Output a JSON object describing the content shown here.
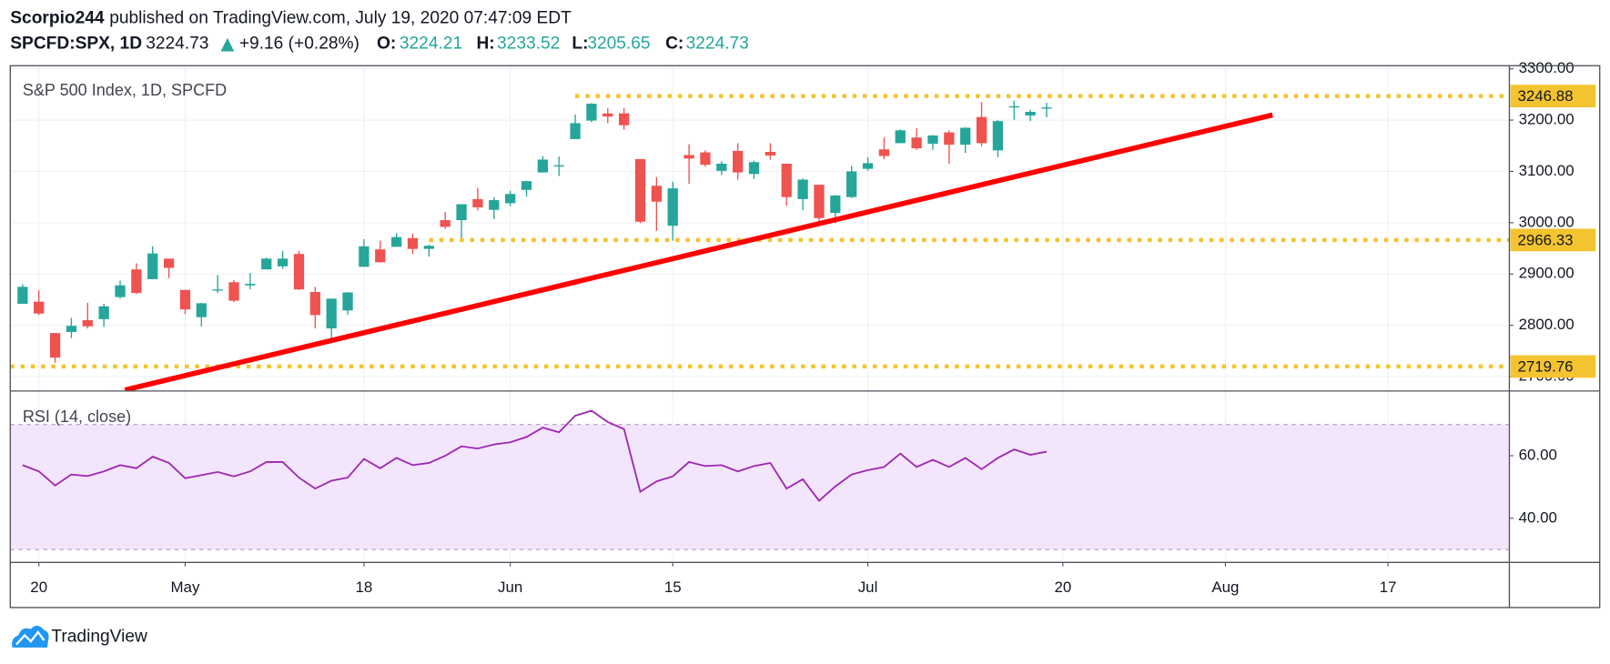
{
  "chart_data": {
    "type": "candlestick",
    "header": {
      "publisher": "Scorpio244",
      "published": "published on TradingView.com, July 19, 2020 07:47:09 EDT",
      "symbol": "SPCFD:SPX, 1D",
      "change": "+9.16 (+0.28%)",
      "open_label": "O:",
      "high_label": "H:",
      "low_label": "L:",
      "close_label": "C:"
    },
    "legend": "S&P 500 Index, 1D, SPCFD",
    "footer": "TradingView",
    "up_color": "#26a69a",
    "down_color": "#ef5350",
    "open": [
      2842,
      2846,
      2785,
      2787,
      2810,
      2812,
      2855,
      2909,
      2890,
      2930,
      2869,
      2816,
      2868,
      2884,
      2878,
      2909,
      2915,
      2939,
      2865,
      2794,
      2829,
      2914,
      2948,
      2953,
      2970,
      2949,
      3005,
      3005,
      3046,
      3025,
      3038,
      3064,
      3098,
      3111,
      3163,
      3199,
      3213,
      3213,
      3124,
      3072,
      2994,
      3132,
      3137,
      3101,
      3140,
      3095,
      3138,
      3115,
      3046,
      3074,
      3019,
      3050,
      3105,
      3143,
      3155,
      3166,
      3154,
      3176,
      3152,
      3206,
      3141,
      3225,
      3209,
      3224.21
    ],
    "high": [
      2880,
      2868,
      2785,
      2815,
      2844,
      2842,
      2887,
      2921,
      2954,
      2930,
      2869,
      2844,
      2898,
      2888,
      2902,
      2932,
      2945,
      2945,
      2875,
      2852,
      2865,
      2968,
      2965,
      2980,
      2979,
      2957,
      3021,
      3036,
      3068,
      3050,
      3062,
      3082,
      3130,
      3129,
      3211,
      3233,
      3223,
      3223,
      3124,
      3089,
      3080,
      3153,
      3141,
      3120,
      3155,
      3121,
      3155,
      3115,
      3086,
      3074,
      3054,
      3111,
      3128,
      3166,
      3182,
      3184,
      3171,
      3180,
      3186,
      3235,
      3200,
      3238,
      3220,
      3233.52
    ],
    "low": [
      2842,
      2820,
      2727,
      2775,
      2794,
      2797,
      2852,
      2861,
      2890,
      2892,
      2822,
      2798,
      2863,
      2845,
      2870,
      2909,
      2910,
      2869,
      2794,
      2767,
      2821,
      2914,
      2922,
      2953,
      2939,
      2934,
      2988,
      2969,
      3024,
      3007,
      3032,
      3051,
      3098,
      3091,
      3163,
      3196,
      3194,
      3181,
      2999,
      2984,
      2965,
      3076,
      3109,
      3093,
      3084,
      3085,
      3123,
      3033,
      3024,
      3004,
      2999,
      3048,
      3101,
      3124,
      3155,
      3142,
      3142,
      3115,
      3136,
      3149,
      3128,
      3201,
      3198,
      3205.65
    ],
    "close": [
      2875,
      2823,
      2737,
      2799,
      2798,
      2837,
      2878,
      2863,
      2940,
      2912,
      2831,
      2843,
      2870,
      2848,
      2881,
      2930,
      2930,
      2870,
      2820,
      2852,
      2864,
      2954,
      2923,
      2972,
      2949,
      2955,
      2992,
      3036,
      3030,
      3044,
      3056,
      3081,
      3123,
      3112,
      3194,
      3232,
      3207,
      3190,
      3002,
      3041,
      3067,
      3125,
      3113,
      3115,
      3098,
      3118,
      3131,
      3050,
      3084,
      3009,
      3053,
      3100,
      3116,
      3130,
      3180,
      3145,
      3170,
      3152,
      3185,
      3155,
      3198,
      3227,
      3216,
      3224.73
    ],
    "xlim": [
      -0.76,
      91.47
    ],
    "xticks": [
      {
        "value": 1,
        "label": "20"
      },
      {
        "value": 10,
        "label": "May"
      },
      {
        "value": 21,
        "label": "18"
      },
      {
        "value": 30,
        "label": "Jun"
      },
      {
        "value": 40,
        "label": "15"
      },
      {
        "value": 52,
        "label": "Jul"
      },
      {
        "value": 64,
        "label": "20"
      },
      {
        "value": 74,
        "label": "Aug"
      },
      {
        "value": 84,
        "label": "17"
      }
    ],
    "ylim": [
      2672,
      3306
    ],
    "yticks": [
      {
        "value": 3300,
        "label": "3300.00"
      },
      {
        "value": 3200,
        "label": "3200.00"
      },
      {
        "value": 3100,
        "label": "3100.00"
      },
      {
        "value": 3000,
        "label": "3000.00"
      },
      {
        "value": 2900,
        "label": "2900.00"
      },
      {
        "value": 2800,
        "label": "2800.00"
      },
      {
        "value": 2700,
        "label": "2700.00"
      }
    ],
    "levels": [
      {
        "value": 3246.88,
        "start": 34
      },
      {
        "value": 2966.33,
        "start": 25
      },
      {
        "value": 2719.76,
        "start": -0.76
      }
    ],
    "level_color": "#f4c430",
    "trendline": {
      "x": [
        6.3,
        76.9
      ],
      "y": [
        2674,
        3210
      ],
      "color": "#ff0000"
    },
    "rsi": {
      "name": "RSI (14, close)",
      "color": "#9c27b0",
      "values": [
        57,
        55,
        50.5,
        54,
        53.5,
        55,
        57,
        56,
        59.7,
        57.7,
        52.8,
        53.8,
        54.8,
        53.4,
        55,
        58,
        58,
        53,
        49.5,
        52,
        53,
        59,
        56,
        59.3,
        57,
        57.7,
        60,
        63,
        62.3,
        63.6,
        64.3,
        66,
        69,
        67.5,
        72.8,
        74.4,
        70.8,
        68.5,
        48.5,
        51.8,
        53.4,
        58,
        56.7,
        57,
        55,
        56.7,
        57.7,
        49.5,
        52.5,
        45.6,
        50.2,
        54,
        55.4,
        56.4,
        60.7,
        56.4,
        58.7,
        56.4,
        59.3,
        55.7,
        59.3,
        62,
        60.3,
        61.3
      ],
      "ylim": [
        25.9,
        80.7
      ],
      "yticks": [
        {
          "value": 60,
          "label": "60.00"
        },
        {
          "value": 40,
          "label": "40.00"
        }
      ],
      "bands": [
        70,
        30
      ]
    },
    "grid": true
  }
}
